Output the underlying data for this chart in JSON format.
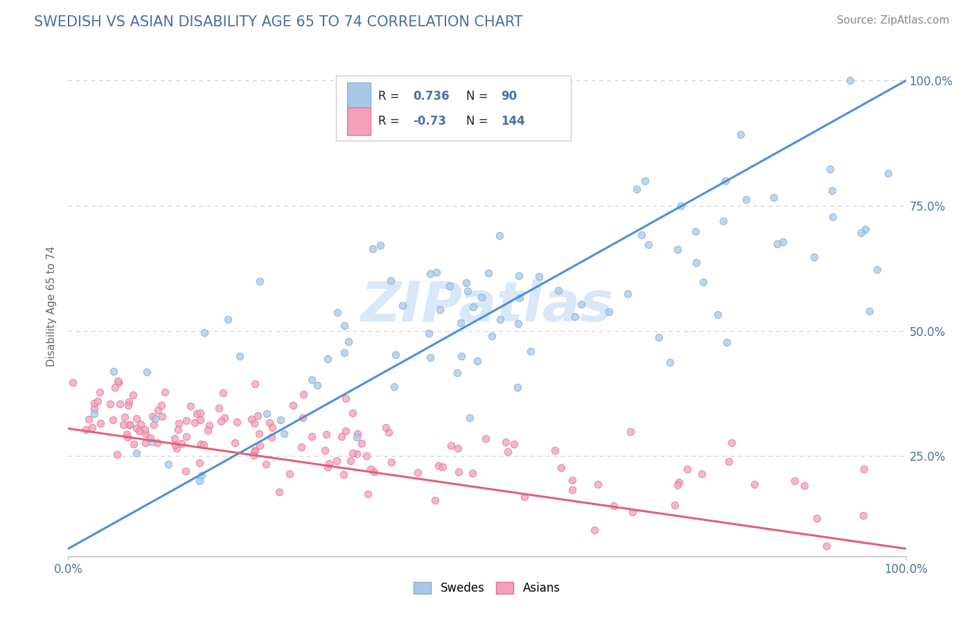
{
  "title": "SWEDISH VS ASIAN DISABILITY AGE 65 TO 74 CORRELATION CHART",
  "source_text": "Source: ZipAtlas.com",
  "ylabel": "Disability Age 65 to 74",
  "xlim": [
    0.0,
    1.0
  ],
  "ylim": [
    0.05,
    1.05
  ],
  "swedes_R": 0.736,
  "swedes_N": 90,
  "asians_R": -0.73,
  "asians_N": 144,
  "swede_color": "#A8C8E8",
  "asian_color": "#F4A0B8",
  "swede_edge_color": "#7AAAD0",
  "asian_edge_color": "#E07090",
  "swede_line_color": "#4A90D9",
  "asian_line_color": "#E0607A",
  "background_color": "#FFFFFF",
  "grid_color": "#CCCCCC",
  "title_color": "#4A6FA5",
  "source_color": "#888888",
  "legend_value_color": "#4A6FA5",
  "watermark_color": "#D8E8F8",
  "sw_line_x0": 0.0,
  "sw_line_y0": 0.065,
  "sw_line_x1": 1.0,
  "sw_line_y1": 1.0,
  "as_line_x0": 0.0,
  "as_line_y0": 0.305,
  "as_line_x1": 1.0,
  "as_line_y1": 0.065
}
